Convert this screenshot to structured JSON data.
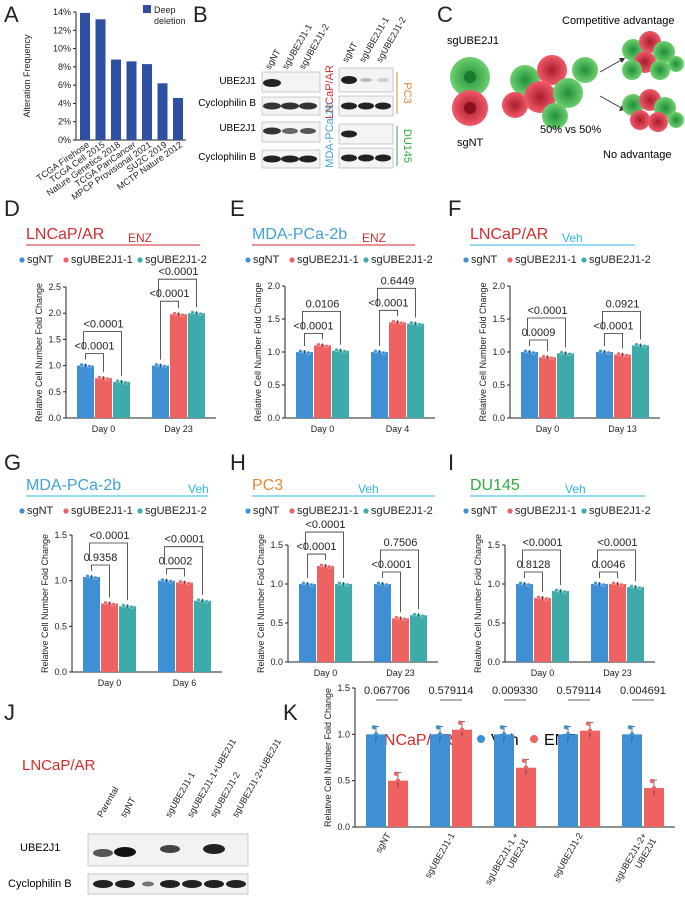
{
  "colors": {
    "sgNT": "#3E8FD4",
    "g1": "#EF6262",
    "g2": "#3FAAAA",
    "bar_a": "#2F4FA3",
    "lncap": "#D42B2B",
    "mda": "#3FA3D9",
    "pc3": "#E5873A",
    "du145": "#2FAA3F",
    "enz": "#D42B2B",
    "veh": "#2EB7E3"
  },
  "panels": {
    "A": "A",
    "B": "B",
    "C": "C",
    "D": "D",
    "E": "E",
    "F": "F",
    "G": "G",
    "H": "H",
    "I": "I",
    "J": "J",
    "K": "K"
  },
  "panelA": {
    "chart_data": {
      "type": "bar",
      "title": "",
      "ylabel": "Alteration Frequency",
      "legend": "Deep deletion",
      "ylim": [
        0,
        14
      ],
      "yticks": [
        "0%",
        "2%",
        "4%",
        "6%",
        "8%",
        "10%",
        "12%",
        "14%"
      ],
      "categories": [
        "TCGA Firehose",
        "TCGA Cell 2015",
        "Nature Genetics 2018",
        "TCGA PanCancer",
        "MPCP Provisional 2021",
        "SU2C 2019",
        "MCTP Nature 2012"
      ],
      "values": [
        13.9,
        13.2,
        8.8,
        8.6,
        8.3,
        6.2,
        4.6
      ]
    }
  },
  "panelB": {
    "lanes_left": [
      "sgNT",
      "sgUBE2J1-1",
      "sgUBE2J1-2"
    ],
    "lanes_right": [
      "sgNT",
      "sgUBE2J1-1",
      "sgUBE2J1-2"
    ],
    "row1": "UBE2J1",
    "row2": "Cyclophilin B",
    "row3": "UBE2J1",
    "row4": "Cyclophilin B",
    "cell_lncap": "LNCaP/AR",
    "cell_mda": "MDA-PCa-2b",
    "cell_pc3": "PC3",
    "cell_du145": "DU145"
  },
  "panelC": {
    "sg": "sgUBE2J1",
    "nt": "sgNT",
    "ratio": "50% vs 50%",
    "adv": "Competitive advantage",
    "noadv": "No advantage"
  },
  "legend": {
    "sgNT": "sgNT",
    "g1": "sgUBE2J1-1",
    "g2": "sgUBE2J1-2"
  },
  "ylabel": "Relative Cell Number Fold Change",
  "panelD": {
    "title": "LNCaP/AR",
    "treat": "ENZ",
    "chart_data": {
      "type": "bar",
      "ylim": [
        0,
        2.5
      ],
      "yticks": [
        "0.0",
        "0.5",
        "1.0",
        "1.5",
        "2.0",
        "2.5"
      ],
      "categories": [
        "Day 0",
        "Day 23"
      ],
      "series": [
        {
          "name": "sgNT",
          "values": [
            1.0,
            1.0
          ]
        },
        {
          "name": "sgUBE2J1-1",
          "values": [
            0.76,
            1.98
          ]
        },
        {
          "name": "sgUBE2J1-2",
          "values": [
            0.69,
            2.0
          ]
        }
      ],
      "pvals": [
        [
          "<0.0001",
          "<0.0001"
        ],
        [
          "<0.0001",
          "<0.0001"
        ]
      ]
    }
  },
  "panelE": {
    "title": "MDA-PCa-2b",
    "treat": "ENZ",
    "chart_data": {
      "type": "bar",
      "ylim": [
        0,
        2.0
      ],
      "yticks": [
        "0.0",
        "0.5",
        "1.0",
        "1.5",
        "2.0"
      ],
      "categories": [
        "Day 0",
        "Day 4"
      ],
      "series": [
        {
          "name": "sgNT",
          "values": [
            1.0,
            1.0
          ]
        },
        {
          "name": "sgUBE2J1-1",
          "values": [
            1.1,
            1.45
          ]
        },
        {
          "name": "sgUBE2J1-2",
          "values": [
            1.02,
            1.43
          ]
        }
      ],
      "pvals": [
        [
          "0.0106",
          "0.6449"
        ],
        [
          "<0.0001",
          "<0.0001"
        ]
      ]
    }
  },
  "panelF": {
    "title": "LNCaP/AR",
    "treat": "Veh",
    "chart_data": {
      "type": "bar",
      "ylim": [
        0,
        2.0
      ],
      "yticks": [
        "0.0",
        "0.5",
        "1.0",
        "1.5",
        "2.0"
      ],
      "categories": [
        "Day 0",
        "Day 13"
      ],
      "series": [
        {
          "name": "sgNT",
          "values": [
            1.0,
            1.0
          ]
        },
        {
          "name": "sgUBE2J1-1",
          "values": [
            0.92,
            0.96
          ]
        },
        {
          "name": "sgUBE2J1-2",
          "values": [
            0.98,
            1.1
          ]
        }
      ],
      "pvals": [
        [
          "<0.0001",
          "0.0921"
        ],
        [
          "0.0009",
          "<0.0001"
        ]
      ]
    }
  },
  "panelG": {
    "title": "MDA-PCa-2b",
    "treat": "Veh",
    "chart_data": {
      "type": "bar",
      "ylim": [
        0,
        1.5
      ],
      "yticks": [
        "0.0",
        "0.5",
        "1.0",
        "1.5"
      ],
      "categories": [
        "Day 0",
        "Day 6"
      ],
      "series": [
        {
          "name": "sgNT",
          "values": [
            1.04,
            1.0
          ]
        },
        {
          "name": "sgUBE2J1-1",
          "values": [
            0.75,
            0.98
          ]
        },
        {
          "name": "sgUBE2J1-2",
          "values": [
            0.72,
            0.78
          ]
        }
      ],
      "pvals": [
        [
          "<0.0001",
          "<0.0001"
        ],
        [
          "0.9358",
          "0.0002"
        ]
      ]
    }
  },
  "panelH": {
    "title": "PC3",
    "treat": "Veh",
    "chart_data": {
      "type": "bar",
      "ylim": [
        0,
        1.5
      ],
      "yticks": [
        "0.0",
        "0.5",
        "1.0",
        "1.5"
      ],
      "categories": [
        "Day 0",
        "Day 23"
      ],
      "series": [
        {
          "name": "sgNT",
          "values": [
            1.0,
            1.0
          ]
        },
        {
          "name": "sgUBE2J1-1",
          "values": [
            1.23,
            0.56
          ]
        },
        {
          "name": "sgUBE2J1-2",
          "values": [
            1.0,
            0.6
          ]
        }
      ],
      "pvals": [
        [
          "<0.0001",
          "0.7506"
        ],
        [
          "<0.0001",
          "<0.0001"
        ]
      ]
    }
  },
  "panelI": {
    "title": "DU145",
    "treat": "Veh",
    "chart_data": {
      "type": "bar",
      "ylim": [
        0,
        1.5
      ],
      "yticks": [
        "0.0",
        "0.5",
        "1.0",
        "1.5"
      ],
      "categories": [
        "Day 0",
        "Day 23"
      ],
      "series": [
        {
          "name": "sgNT",
          "values": [
            1.0,
            1.0
          ]
        },
        {
          "name": "sgUBE2J1-1",
          "values": [
            0.82,
            1.0
          ]
        },
        {
          "name": "sgUBE2J1-2",
          "values": [
            0.91,
            0.96
          ]
        }
      ],
      "pvals": [
        [
          "<0.0001",
          "<0.0001"
        ],
        [
          "0.8128",
          "0.0046"
        ]
      ]
    }
  },
  "panelJ": {
    "title": "LNCaP/AR",
    "lanes": [
      "Parental",
      "sgNT",
      "sgUBE2J1-1",
      "sgUBE2J1-1+UBE2J1",
      "sgUBE2J1-2",
      "sgUBE2J1-2+UBE2J1"
    ],
    "row1": "UBE2J1",
    "row2": "Cyclophilin B"
  },
  "panelK": {
    "title": "LNCaP/AR",
    "leg_veh": "Veh",
    "leg_enz": "ENZ",
    "chart_data": {
      "type": "bar",
      "ylim": [
        0,
        1.5
      ],
      "yticks": [
        "0.0",
        "0.5",
        "1.0",
        "1.5"
      ],
      "categories": [
        "sgNT",
        "sgUBE2J1-1",
        "sgUBE2J1-1 + UBE2J1",
        "sgUBE2J1-2",
        "sgUBE2J1-2+ UBE2J1"
      ],
      "series": [
        {
          "name": "Veh",
          "values": [
            1.0,
            1.0,
            1.0,
            1.0,
            1.0
          ]
        },
        {
          "name": "ENZ",
          "values": [
            0.5,
            1.05,
            0.64,
            1.04,
            0.42
          ]
        }
      ],
      "pvals": [
        "0.067706",
        "0.579114",
        "0.009330",
        "0.579114",
        "0.004691"
      ]
    }
  }
}
